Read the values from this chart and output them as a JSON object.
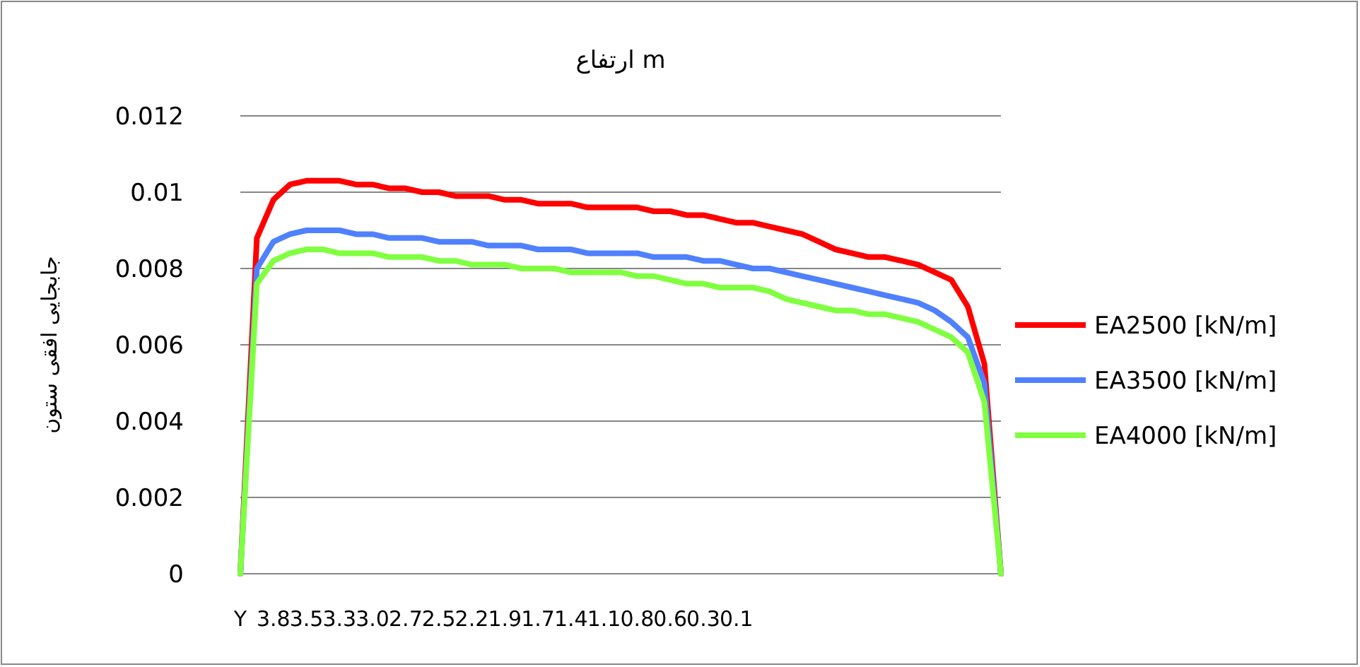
{
  "chart_data": {
    "type": "line",
    "title": "ارتفاع m",
    "ylabel": "جابجایی افقی ستون",
    "categories": [
      "Y",
      null,
      "3.8",
      null,
      "3.5",
      null,
      "3.3",
      null,
      "3.0",
      null,
      "2.7",
      null,
      "2.5",
      null,
      "2.2",
      null,
      "1.9",
      null,
      "1.7",
      null,
      "1.4",
      null,
      "1.1",
      null,
      "0.8",
      null,
      "0.6",
      null,
      "0.3",
      null,
      "0.1",
      null,
      null,
      null,
      null,
      null,
      null,
      null,
      null,
      null,
      null,
      null,
      null,
      null,
      null,
      null,
      null
    ],
    "series": [
      {
        "name": "EA2500 [kN/m]",
        "color": "#ff0000",
        "values": [
          0,
          0.0088,
          0.0098,
          0.0102,
          0.0103,
          0.0103,
          0.0103,
          0.0102,
          0.0102,
          0.0101,
          0.0101,
          0.01,
          0.01,
          0.0099,
          0.0099,
          0.0099,
          0.0098,
          0.0098,
          0.0097,
          0.0097,
          0.0097,
          0.0096,
          0.0096,
          0.0096,
          0.0096,
          0.0095,
          0.0095,
          0.0094,
          0.0094,
          0.0093,
          0.0092,
          0.0092,
          0.0091,
          0.009,
          0.0089,
          0.0087,
          0.0085,
          0.0084,
          0.0083,
          0.0083,
          0.0082,
          0.0081,
          0.0079,
          0.0077,
          0.007,
          0.0055,
          0
        ]
      },
      {
        "name": "EA3500 [kN/m]",
        "color": "#4f81ff",
        "values": [
          0,
          0.008,
          0.0087,
          0.0089,
          0.009,
          0.009,
          0.009,
          0.0089,
          0.0089,
          0.0088,
          0.0088,
          0.0088,
          0.0087,
          0.0087,
          0.0087,
          0.0086,
          0.0086,
          0.0086,
          0.0085,
          0.0085,
          0.0085,
          0.0084,
          0.0084,
          0.0084,
          0.0084,
          0.0083,
          0.0083,
          0.0083,
          0.0082,
          0.0082,
          0.0081,
          0.008,
          0.008,
          0.0079,
          0.0078,
          0.0077,
          0.0076,
          0.0075,
          0.0074,
          0.0073,
          0.0072,
          0.0071,
          0.0069,
          0.0066,
          0.0062,
          0.005,
          0
        ]
      },
      {
        "name": "EA4000 [kN/m]",
        "color": "#80ff40",
        "values": [
          0,
          0.0076,
          0.0082,
          0.0084,
          0.0085,
          0.0085,
          0.0084,
          0.0084,
          0.0084,
          0.0083,
          0.0083,
          0.0083,
          0.0082,
          0.0082,
          0.0081,
          0.0081,
          0.0081,
          0.008,
          0.008,
          0.008,
          0.0079,
          0.0079,
          0.0079,
          0.0079,
          0.0078,
          0.0078,
          0.0077,
          0.0076,
          0.0076,
          0.0075,
          0.0075,
          0.0075,
          0.0074,
          0.0072,
          0.0071,
          0.007,
          0.0069,
          0.0069,
          0.0068,
          0.0068,
          0.0067,
          0.0066,
          0.0064,
          0.0062,
          0.0058,
          0.0045,
          0
        ]
      }
    ],
    "ylim": [
      0,
      0.012
    ],
    "yticks": [
      0,
      0.002,
      0.004,
      0.006,
      0.008,
      0.01,
      0.012
    ],
    "grid": "y",
    "legend": "right",
    "marker": "none",
    "line_style": "solid"
  }
}
